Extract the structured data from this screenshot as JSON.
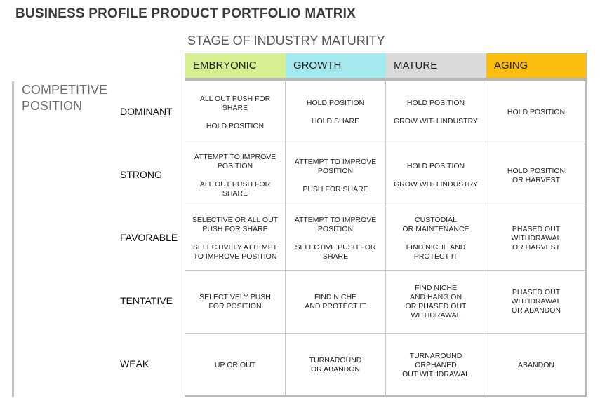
{
  "title": "BUSINESS PROFILE PRODUCT PORTFOLIO MATRIX",
  "stage_label": "STAGE OF INDUSTRY MATURITY",
  "competitive_label": [
    "COMPETITIVE",
    "POSITION"
  ],
  "columns": [
    {
      "label": "EMBRYONIC",
      "color": "#d6ef91"
    },
    {
      "label": "GROWTH",
      "color": "#a3e9ee"
    },
    {
      "label": "MATURE",
      "color": "#dadada"
    },
    {
      "label": "AGING",
      "color": "#fbbd0f"
    }
  ],
  "rows": [
    {
      "label": "DOMINANT",
      "cells": [
        [
          "ALL OUT PUSH FOR SHARE",
          "HOLD POSITION"
        ],
        [
          "HOLD POSITION",
          "HOLD SHARE"
        ],
        [
          "HOLD POSITION",
          "GROW WITH INDUSTRY"
        ],
        [
          "HOLD POSITION"
        ]
      ]
    },
    {
      "label": "STRONG",
      "cells": [
        [
          "ATTEMPT TO IMPROVE\nPOSITION",
          "ALL OUT PUSH FOR SHARE"
        ],
        [
          "ATTEMPT TO IMPROVE\nPOSITION",
          "PUSH FOR SHARE"
        ],
        [
          "HOLD POSITION",
          "GROW WITH INDUSTRY"
        ],
        [
          "HOLD POSITION\nOR HARVEST"
        ]
      ]
    },
    {
      "label": "FAVORABLE",
      "cells": [
        [
          "SELECTIVE OR ALL OUT\nPUSH FOR SHARE",
          "SELECTIVELY ATTEMPT\nTO IMPROVE POSITION"
        ],
        [
          "ATTEMPT TO IMPROVE\nPOSITION",
          "SELECTIVE PUSH FOR SHARE"
        ],
        [
          "CUSTODIAL\nOR MAINTENANCE",
          "FIND NICHE AND PROTECT IT"
        ],
        [
          "PHASED OUT WITHDRAWAL\nOR HARVEST"
        ]
      ]
    },
    {
      "label": "TENTATIVE",
      "cells": [
        [
          "SELECTIVELY PUSH\nFOR POSITION"
        ],
        [
          "FIND NICHE\nAND PROTECT IT"
        ],
        [
          "FIND NICHE\nAND HANG ON\nOR PHASED OUT\nWITHDRAWAL"
        ],
        [
          "PHASED OUT WITHDRAWAL\nOR ABANDON"
        ]
      ]
    },
    {
      "label": "WEAK",
      "cells": [
        [
          "UP OR OUT"
        ],
        [
          "TURNAROUND\nOR ABANDON"
        ],
        [
          "TURNAROUND ORPHANED\nOUT WITHDRAWAL"
        ],
        [
          "ABANDON"
        ]
      ]
    }
  ]
}
